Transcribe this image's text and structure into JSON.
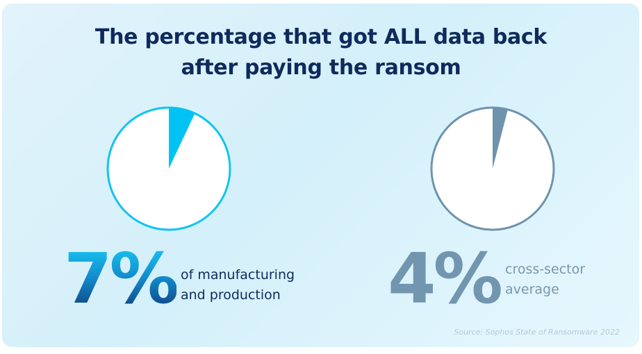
{
  "title_lines": [
    "The percentage that got ALL data back",
    "after paying the ransom"
  ],
  "source": "Source: Sophos State of Ransomware 2022",
  "colors": {
    "background": "#dcf2fb",
    "title": "#0f2a5c",
    "manufacturing_slice": "#00c3f3",
    "average_slice": "#6f93ad",
    "pie_fill": "#ffffff"
  },
  "chart_data": [
    {
      "type": "pie",
      "title": "The percentage that got ALL data back after paying the ransom",
      "value_label": "7%",
      "caption_lines": [
        "of manufacturing",
        "and production"
      ],
      "slices": [
        {
          "label": "got ALL data back",
          "value": 7
        },
        {
          "label": "",
          "value": 93
        }
      ],
      "highlight_color": "#00c3f3",
      "outline_color": "#10c4f2"
    },
    {
      "type": "pie",
      "title": "The percentage that got ALL data back after paying the ransom",
      "value_label": "4%",
      "caption_lines": [
        "cross-sector",
        "average"
      ],
      "slices": [
        {
          "label": "got ALL data back",
          "value": 4
        },
        {
          "label": "",
          "value": 96
        }
      ],
      "highlight_color": "#6f93ad",
      "outline_color": "#6f93ad"
    }
  ]
}
